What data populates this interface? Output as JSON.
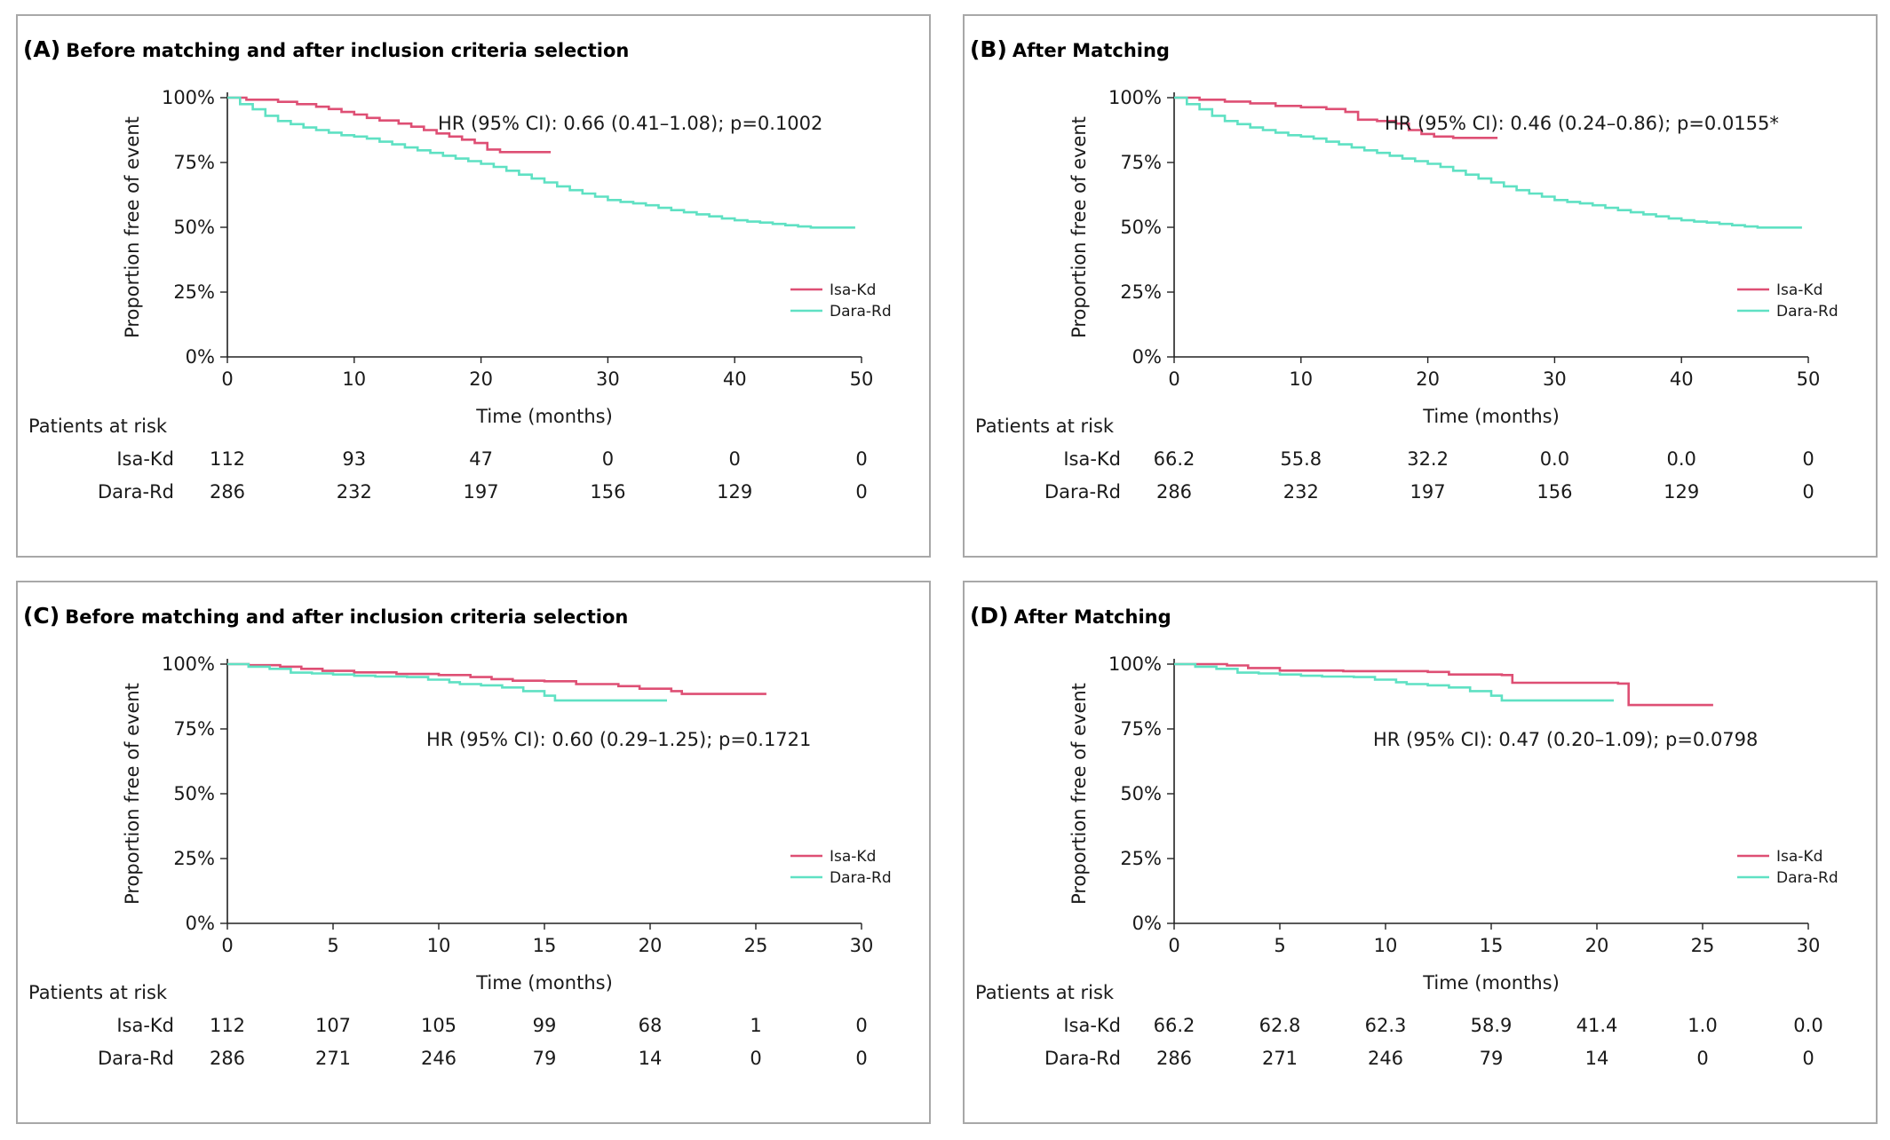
{
  "colors": {
    "isa": "#de4f74",
    "dara": "#5fe1c3",
    "axis": "#222222"
  },
  "chart_data": [
    {
      "type": "line",
      "panel_letter": "(A)",
      "title": "Before matching and after inclusion criteria selection",
      "xlabel": "Time (months)",
      "ylabel": "Proportion free of event",
      "xlim": [
        0,
        50
      ],
      "ylim": [
        0,
        100
      ],
      "x_ticks": [
        "0",
        "10",
        "20",
        "30",
        "40",
        "50"
      ],
      "y_ticks": [
        "0%",
        "25%",
        "50%",
        "75%",
        "100%"
      ],
      "hr_text": "HR (95% CI): 0.66 (0.41–1.08); p=0.1002",
      "hr_pos": "upper",
      "legend": [
        "Isa-Kd",
        "Dara-Rd"
      ],
      "series": [
        {
          "name": "Isa-Kd",
          "color_key": "isa",
          "points": [
            [
              0,
              100
            ],
            [
              1.5,
              99.2
            ],
            [
              4,
              98.4
            ],
            [
              5.5,
              97.5
            ],
            [
              7,
              96.5
            ],
            [
              8,
              95.6
            ],
            [
              9,
              94.5
            ],
            [
              10,
              93.5
            ],
            [
              11,
              92.2
            ],
            [
              12,
              91.2
            ],
            [
              13.5,
              90
            ],
            [
              14.5,
              88.8
            ],
            [
              15.5,
              87.5
            ],
            [
              16.5,
              86.2
            ],
            [
              17.5,
              85
            ],
            [
              18.5,
              83.8
            ],
            [
              19.5,
              82.5
            ],
            [
              20.5,
              80
            ],
            [
              21.5,
              79
            ],
            [
              25.5,
              79
            ]
          ]
        },
        {
          "name": "Dara-Rd",
          "color_key": "dara",
          "points": [
            [
              0,
              100
            ],
            [
              1,
              97.5
            ],
            [
              2,
              95.5
            ],
            [
              3,
              93
            ],
            [
              4,
              91
            ],
            [
              5,
              89.8
            ],
            [
              6,
              88.5
            ],
            [
              7,
              87.5
            ],
            [
              8,
              86.5
            ],
            [
              9,
              85.5
            ],
            [
              10,
              85
            ],
            [
              11,
              84.2
            ],
            [
              12,
              83
            ],
            [
              13,
              82
            ],
            [
              14,
              80.8
            ],
            [
              15,
              79.7
            ],
            [
              16,
              78.7
            ],
            [
              17,
              77.6
            ],
            [
              18,
              76.5
            ],
            [
              19,
              75.5
            ],
            [
              20,
              74.5
            ],
            [
              21,
              73.3
            ],
            [
              22,
              71.8
            ],
            [
              23,
              70.3
            ],
            [
              24,
              68.8
            ],
            [
              25,
              67.3
            ],
            [
              26,
              65.8
            ],
            [
              27,
              64.3
            ],
            [
              28,
              63
            ],
            [
              29,
              61.8
            ],
            [
              30,
              60.5
            ],
            [
              31,
              59.8
            ],
            [
              32,
              59.2
            ],
            [
              33,
              58.5
            ],
            [
              34,
              57.5
            ],
            [
              35,
              56.6
            ],
            [
              36,
              55.8
            ],
            [
              37,
              55
            ],
            [
              38,
              54.2
            ],
            [
              39,
              53.4
            ],
            [
              40,
              52.7
            ],
            [
              41,
              52.2
            ],
            [
              42,
              51.8
            ],
            [
              43,
              51.3
            ],
            [
              44,
              50.8
            ],
            [
              45,
              50.3
            ],
            [
              46,
              49.9
            ],
            [
              49.5,
              49.9
            ]
          ]
        }
      ],
      "risk_table": {
        "header": "Patients at risk",
        "rows": [
          {
            "label": "Isa-Kd",
            "values": [
              "112",
              "93",
              "47",
              "0",
              "0",
              "0"
            ]
          },
          {
            "label": "Dara-Rd",
            "values": [
              "286",
              "232",
              "197",
              "156",
              "129",
              "0"
            ]
          }
        ]
      }
    },
    {
      "type": "line",
      "panel_letter": "(B)",
      "title": "After Matching",
      "xlabel": "Time (months)",
      "ylabel": "Proportion free of event",
      "xlim": [
        0,
        50
      ],
      "ylim": [
        0,
        100
      ],
      "x_ticks": [
        "0",
        "10",
        "20",
        "30",
        "40",
        "50"
      ],
      "y_ticks": [
        "0%",
        "25%",
        "50%",
        "75%",
        "100%"
      ],
      "hr_text": "HR (95% CI): 0.46 (0.24–0.86); p=0.0155*",
      "hr_pos": "upper",
      "legend": [
        "Isa-Kd",
        "Dara-Rd"
      ],
      "series": [
        {
          "name": "Isa-Kd",
          "color_key": "isa",
          "points": [
            [
              0,
              100
            ],
            [
              2,
              99.2
            ],
            [
              4,
              98.5
            ],
            [
              6,
              97.8
            ],
            [
              8,
              96.8
            ],
            [
              10,
              96.3
            ],
            [
              12,
              95.6
            ],
            [
              13.5,
              94.5
            ],
            [
              14.5,
              91.5
            ],
            [
              16,
              91
            ],
            [
              17.5,
              90
            ],
            [
              18.5,
              87.5
            ],
            [
              19.5,
              86
            ],
            [
              20.5,
              85
            ],
            [
              22,
              84.5
            ],
            [
              25.5,
              84.5
            ]
          ]
        },
        {
          "name": "Dara-Rd",
          "color_key": "dara",
          "points": [
            [
              0,
              100
            ],
            [
              1,
              97.5
            ],
            [
              2,
              95.5
            ],
            [
              3,
              93
            ],
            [
              4,
              91
            ],
            [
              5,
              89.8
            ],
            [
              6,
              88.5
            ],
            [
              7,
              87.5
            ],
            [
              8,
              86.5
            ],
            [
              9,
              85.5
            ],
            [
              10,
              85
            ],
            [
              11,
              84.2
            ],
            [
              12,
              83
            ],
            [
              13,
              82
            ],
            [
              14,
              80.8
            ],
            [
              15,
              79.7
            ],
            [
              16,
              78.7
            ],
            [
              17,
              77.6
            ],
            [
              18,
              76.5
            ],
            [
              19,
              75.5
            ],
            [
              20,
              74.5
            ],
            [
              21,
              73.3
            ],
            [
              22,
              71.8
            ],
            [
              23,
              70.3
            ],
            [
              24,
              68.8
            ],
            [
              25,
              67.3
            ],
            [
              26,
              65.8
            ],
            [
              27,
              64.3
            ],
            [
              28,
              63
            ],
            [
              29,
              61.8
            ],
            [
              30,
              60.5
            ],
            [
              31,
              59.8
            ],
            [
              32,
              59.2
            ],
            [
              33,
              58.5
            ],
            [
              34,
              57.5
            ],
            [
              35,
              56.6
            ],
            [
              36,
              55.8
            ],
            [
              37,
              55
            ],
            [
              38,
              54.2
            ],
            [
              39,
              53.4
            ],
            [
              40,
              52.7
            ],
            [
              41,
              52.2
            ],
            [
              42,
              51.8
            ],
            [
              43,
              51.3
            ],
            [
              44,
              50.8
            ],
            [
              45,
              50.3
            ],
            [
              46,
              49.9
            ],
            [
              49.5,
              49.9
            ]
          ]
        }
      ],
      "risk_table": {
        "header": "Patients at risk",
        "rows": [
          {
            "label": "Isa-Kd",
            "values": [
              "66.2",
              "55.8",
              "32.2",
              "0.0",
              "0.0",
              "0"
            ]
          },
          {
            "label": "Dara-Rd",
            "values": [
              "286",
              "232",
              "197",
              "156",
              "129",
              "0"
            ]
          }
        ]
      }
    },
    {
      "type": "line",
      "panel_letter": "(C)",
      "title": "Before matching and after inclusion criteria selection",
      "xlabel": "Time (months)",
      "ylabel": "Proportion free of event",
      "xlim": [
        0,
        30
      ],
      "ylim": [
        0,
        100
      ],
      "x_ticks": [
        "0",
        "5",
        "10",
        "15",
        "20",
        "25",
        "30"
      ],
      "y_ticks": [
        "0%",
        "25%",
        "50%",
        "75%",
        "100%"
      ],
      "hr_text": "HR (95% CI): 0.60 (0.29–1.25); p=0.1721",
      "hr_pos": "mid",
      "legend": [
        "Isa-Kd",
        "Dara-Rd"
      ],
      "series": [
        {
          "name": "Isa-Kd",
          "color_key": "isa",
          "points": [
            [
              0,
              100
            ],
            [
              1,
              99.6
            ],
            [
              2.5,
              99
            ],
            [
              3.5,
              98.2
            ],
            [
              4.5,
              97.4
            ],
            [
              6,
              96.8
            ],
            [
              8,
              96.2
            ],
            [
              10,
              95.8
            ],
            [
              11.5,
              95
            ],
            [
              12.5,
              94.2
            ],
            [
              13.5,
              93.6
            ],
            [
              15,
              93.4
            ],
            [
              16.5,
              92.3
            ],
            [
              18.5,
              91.5
            ],
            [
              19.5,
              90.5
            ],
            [
              21,
              89.6
            ],
            [
              21.5,
              88.5
            ],
            [
              25.5,
              88.5
            ]
          ]
        },
        {
          "name": "Dara-Rd",
          "color_key": "dara",
          "points": [
            [
              0,
              100
            ],
            [
              1,
              99
            ],
            [
              2,
              98.2
            ],
            [
              3,
              96.7
            ],
            [
              4,
              96.4
            ],
            [
              5,
              96
            ],
            [
              6,
              95.5
            ],
            [
              7,
              95.2
            ],
            [
              8.5,
              95
            ],
            [
              9.5,
              94
            ],
            [
              10.5,
              93
            ],
            [
              11,
              92.3
            ],
            [
              12,
              91.8
            ],
            [
              13,
              91
            ],
            [
              14,
              89.6
            ],
            [
              15,
              87.8
            ],
            [
              15.5,
              86
            ],
            [
              18,
              86
            ],
            [
              20.8,
              86
            ]
          ]
        }
      ],
      "risk_table": {
        "header": "Patients at risk",
        "rows": [
          {
            "label": "Isa-Kd",
            "values": [
              "112",
              "107",
              "105",
              "99",
              "68",
              "1",
              "0"
            ]
          },
          {
            "label": "Dara-Rd",
            "values": [
              "286",
              "271",
              "246",
              "79",
              "14",
              "0",
              "0"
            ]
          }
        ]
      }
    },
    {
      "type": "line",
      "panel_letter": "(D)",
      "title": "After Matching",
      "xlabel": "Time (months)",
      "ylabel": "Proportion free of event",
      "xlim": [
        0,
        30
      ],
      "ylim": [
        0,
        100
      ],
      "x_ticks": [
        "0",
        "5",
        "10",
        "15",
        "20",
        "25",
        "30"
      ],
      "y_ticks": [
        "0%",
        "25%",
        "50%",
        "75%",
        "100%"
      ],
      "hr_text": "HR (95% CI): 0.47 (0.20–1.09); p=0.0798",
      "hr_pos": "mid",
      "legend": [
        "Isa-Kd",
        "Dara-Rd"
      ],
      "series": [
        {
          "name": "Isa-Kd",
          "color_key": "isa",
          "points": [
            [
              0,
              100
            ],
            [
              2.5,
              99.5
            ],
            [
              3.5,
              98.5
            ],
            [
              5,
              97.5
            ],
            [
              8,
              97.3
            ],
            [
              12,
              97
            ],
            [
              13,
              96
            ],
            [
              15.5,
              95.8
            ],
            [
              16,
              92.8
            ],
            [
              21,
              92.5
            ],
            [
              21.5,
              84.2
            ],
            [
              25.5,
              84.2
            ]
          ]
        },
        {
          "name": "Dara-Rd",
          "color_key": "dara",
          "points": [
            [
              0,
              100
            ],
            [
              1,
              99
            ],
            [
              2,
              98.2
            ],
            [
              3,
              96.7
            ],
            [
              4,
              96.4
            ],
            [
              5,
              96
            ],
            [
              6,
              95.5
            ],
            [
              7,
              95.2
            ],
            [
              8.5,
              95
            ],
            [
              9.5,
              94
            ],
            [
              10.5,
              93
            ],
            [
              11,
              92.3
            ],
            [
              12,
              91.8
            ],
            [
              13,
              91
            ],
            [
              14,
              89.6
            ],
            [
              15,
              87.8
            ],
            [
              15.5,
              86
            ],
            [
              18,
              86
            ],
            [
              20.8,
              86
            ]
          ]
        }
      ],
      "risk_table": {
        "header": "Patients at risk",
        "rows": [
          {
            "label": "Isa-Kd",
            "values": [
              "66.2",
              "62.8",
              "62.3",
              "58.9",
              "41.4",
              "1.0",
              "0.0"
            ]
          },
          {
            "label": "Dara-Rd",
            "values": [
              "286",
              "271",
              "246",
              "79",
              "14",
              "0",
              "0"
            ]
          }
        ]
      }
    }
  ]
}
